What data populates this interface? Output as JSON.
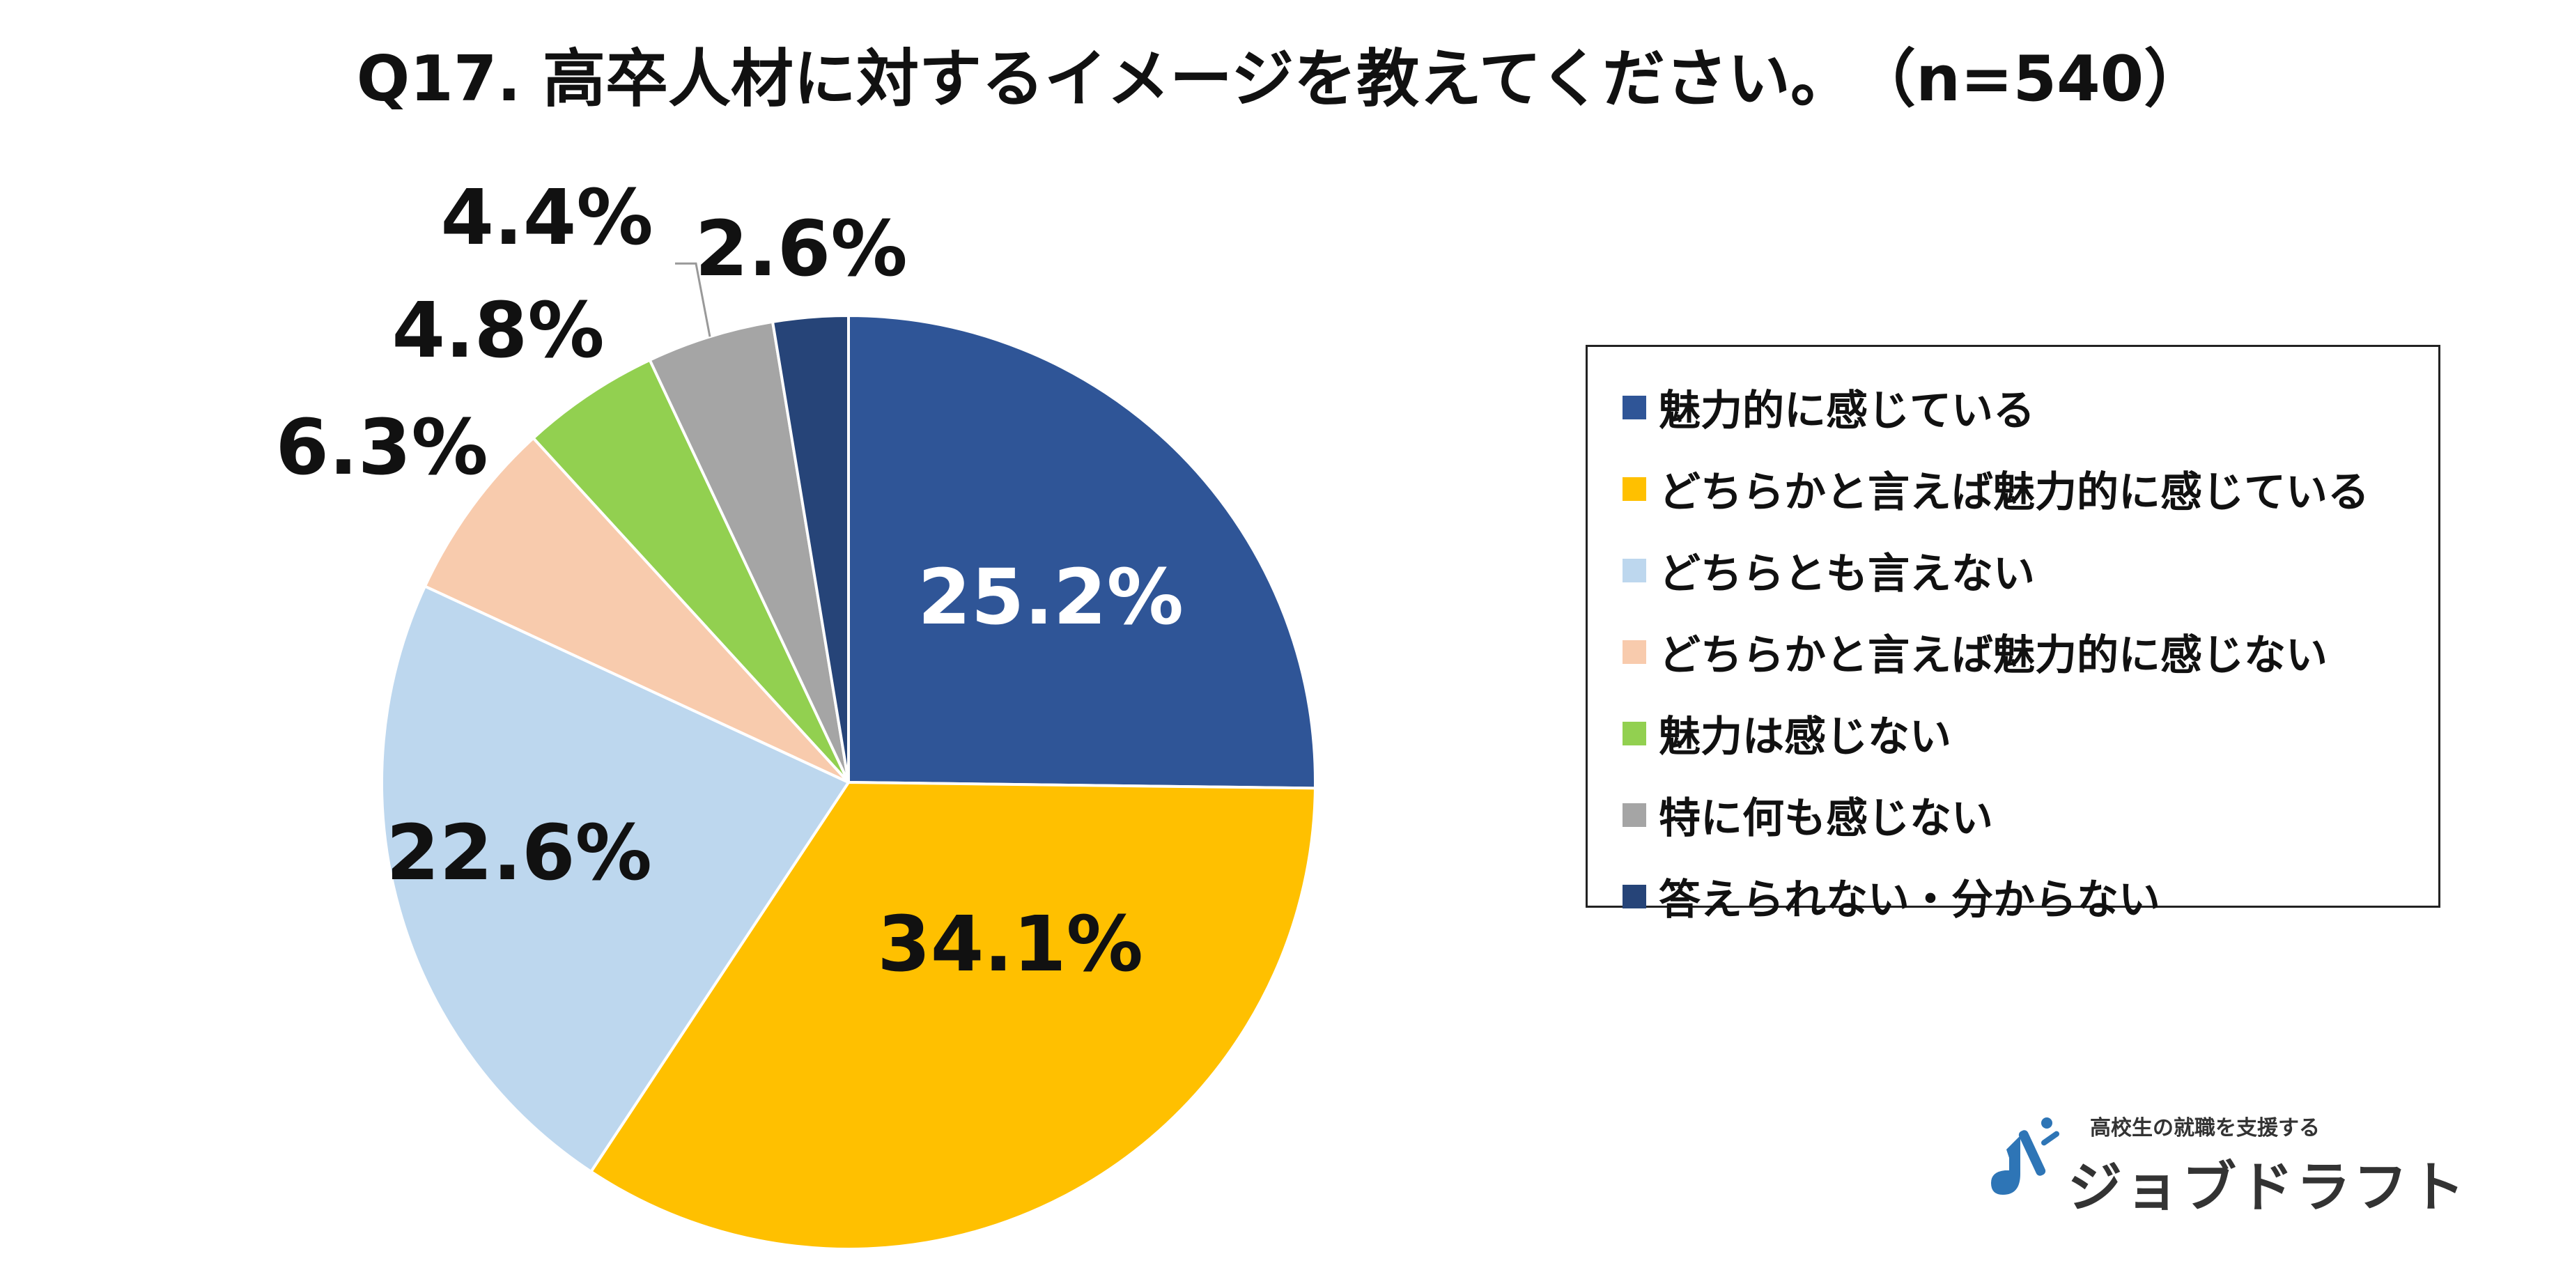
{
  "title": "Q17. 高卒人材に対するイメージを教えてください。　（n=540）",
  "colors": {
    "slice_1": "#2F5597",
    "slice_2": "#FFC000",
    "slice_3": "#BDD7EE",
    "slice_4": "#F8CBAD",
    "slice_5": "#92D050",
    "slice_6": "#A5A5A5",
    "slice_7": "#264478",
    "logo_accent": "#2E75B6"
  },
  "chart_data": {
    "type": "pie",
    "title": "Q17. 高卒人材に対するイメージを教えてください。　（n=540）",
    "unit": "%",
    "start": "12 o'clock, clockwise",
    "categories": [
      "魅力的に感じている",
      "どちらかと言えば魅力的に感じている",
      "どちらとも言えない",
      "どちらかと言えば魅力的に感じない",
      "魅力は感じない",
      "特に何も感じない",
      "答えられない・分からない"
    ],
    "values": [
      25.2,
      34.1,
      22.6,
      6.3,
      4.8,
      4.4,
      2.6
    ],
    "data_labels": [
      "25.2%",
      "34.1%",
      "22.6%",
      "6.3%",
      "4.8%",
      "4.4%",
      "2.6%"
    ],
    "legend": {
      "position": "right",
      "entries": [
        "魅力的に感じている",
        "どちらかと言えば魅力的に感じている",
        "どちらとも言えない",
        "どちらかと言えば魅力的に感じない",
        "魅力は感じない",
        "特に何も感じない",
        "答えられない・分からない"
      ]
    }
  },
  "logo": {
    "tagline": "高校生の就職を支援する",
    "name": "ジョブドラフト"
  }
}
